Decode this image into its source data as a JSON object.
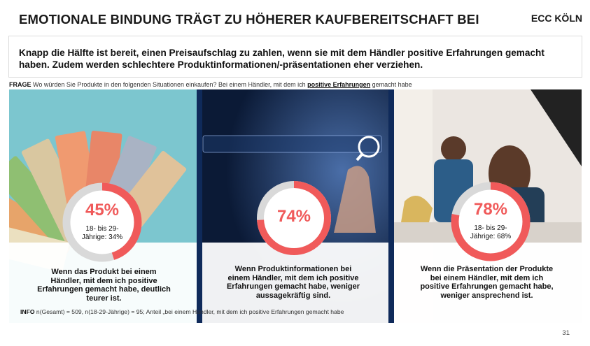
{
  "header": {
    "title": "EMOTIONALE BINDUNG TRÄGT ZU HÖHERER KAUFBEREITSCHAFT BEI",
    "brand": "ECC KÖLN"
  },
  "subtitle": "Knapp die Hälfte ist bereit, einen Preisaufschlag zu zahlen, wenn sie mit dem Händler positive Erfahrungen gemacht haben. Zudem werden schlechtere Produktinformationen/-präsentationen eher verziehen.",
  "question": {
    "label": "FRAGE",
    "text": "Wo würden Sie Produkte in den folgenden Situationen einkaufen? Bei einem Händler, mit dem ich",
    "emphasis": "positive Erfahrungen",
    "suffix": "gemacht habe"
  },
  "panels": [
    {
      "value": 45,
      "value_label": "45%",
      "sub_label": "18- bis 29-Jährige: 34%",
      "caption": "Wenn das Produkt bei einem Händler, mit dem ich positive Erfahrungen gemacht habe, deutlich teurer ist."
    },
    {
      "value": 74,
      "value_label": "74%",
      "sub_label": "",
      "caption": "Wenn Produktinformationen bei einem Händler, mit dem ich positive Erfahrungen gemacht habe, weniger aussagekräftig sind."
    },
    {
      "value": 78,
      "value_label": "78%",
      "sub_label": "18- bis 29-Jährige: 68%",
      "caption": "Wenn die Präsentation der Produkte bei einem Händler, mit dem ich positive Erfahrungen gemacht habe, weniger ansprechend ist."
    }
  ],
  "info": {
    "label": "INFO",
    "text": "n(Gesamt) = 509, n(18-29-Jährige) = 95; Anteil „bei einem Händler, mit dem ich positive Erfahrungen gemacht habe"
  },
  "page_number": "31",
  "colors": {
    "accent": "#f05a5a",
    "ring_track": "#d9d9d9",
    "divider": "#0f2a5a"
  }
}
